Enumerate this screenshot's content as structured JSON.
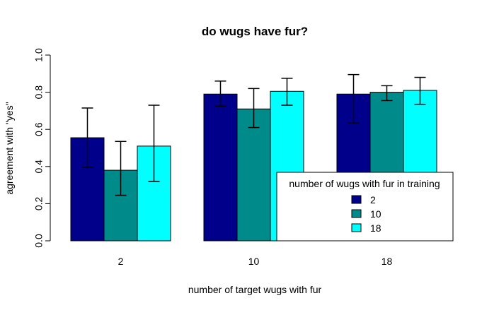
{
  "chart_data": {
    "type": "bar",
    "title": "do wugs have fur?",
    "xlabel": "number of target wugs with fur",
    "ylabel": "agreement with \"yes\"",
    "ylim": [
      0,
      1
    ],
    "yticks": [
      "0.0",
      "0.2",
      "0.4",
      "0.6",
      "0.8",
      "1.0"
    ],
    "categories": [
      "2",
      "10",
      "18"
    ],
    "series": [
      {
        "name": "2",
        "color": "#00008B",
        "values": [
          0.555,
          0.79,
          0.79
        ],
        "err_low": [
          0.395,
          0.725,
          0.635
        ],
        "err_high": [
          0.715,
          0.86,
          0.895
        ]
      },
      {
        "name": "10",
        "color": "#008B8B",
        "values": [
          0.38,
          0.71,
          0.8
        ],
        "err_low": [
          0.245,
          0.61,
          0.755
        ],
        "err_high": [
          0.535,
          0.82,
          0.835
        ]
      },
      {
        "name": "18",
        "color": "#00FFFF",
        "values": [
          0.51,
          0.805,
          0.81
        ],
        "err_low": [
          0.32,
          0.73,
          0.735
        ],
        "err_high": [
          0.73,
          0.875,
          0.88
        ]
      }
    ],
    "legend": {
      "title": "number of wugs with fur in training",
      "position": "bottom-right"
    },
    "grid": false
  }
}
